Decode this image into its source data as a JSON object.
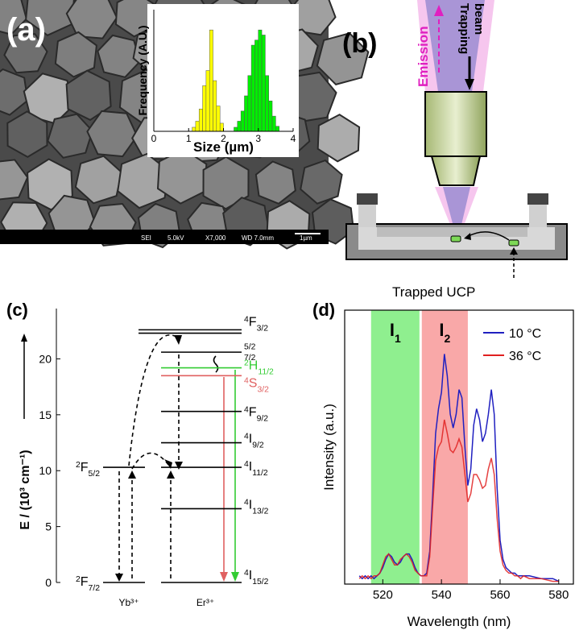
{
  "panels": {
    "a": "(a)",
    "b": "(b)",
    "c": "(c)",
    "d": "(d)"
  },
  "sem_image": {
    "info": [
      "SEI",
      "5.0kV",
      "X7,000",
      "WD 7.0mm"
    ],
    "scale_bar": "1µm"
  },
  "diagram": {
    "trapping_beam": [
      "Trapping",
      "beam"
    ],
    "emission": "Emission",
    "trapped": "Trapped UCP"
  },
  "chart_data": [
    {
      "type": "histogram",
      "xlabel": "Size (µm)",
      "ylabel": "Frequency (A.U.)",
      "xlim": [
        0,
        4
      ],
      "xticks": [
        0,
        1,
        2,
        3,
        4
      ],
      "ylim": [
        0,
        120
      ],
      "series": [
        {
          "color": "#ffff00",
          "bins": [
            1.1,
            1.2,
            1.3,
            1.4,
            1.5,
            1.6,
            1.7,
            1.8,
            1.9,
            2.0
          ],
          "values": [
            4,
            10,
            22,
            45,
            60,
            100,
            50,
            25,
            8
          ]
        },
        {
          "color": "#00ee00",
          "bins": [
            2.3,
            2.4,
            2.5,
            2.6,
            2.7,
            2.8,
            2.9,
            3.0,
            3.1,
            3.2,
            3.3,
            3.4,
            3.5,
            3.6
          ],
          "values": [
            4,
            10,
            20,
            35,
            55,
            85,
            90,
            100,
            95,
            55,
            30,
            15,
            5
          ]
        }
      ]
    },
    {
      "type": "energy-levels",
      "ylabel": "E / (10³ cm⁻¹)",
      "ylim": [
        0,
        24.5
      ],
      "yticks": [
        0,
        5,
        10,
        15,
        20
      ],
      "ions": [
        {
          "name": "Yb³⁺",
          "levels": [
            {
              "label": {
                "sup": "2",
                "main": "F",
                "sub": "5/2"
              },
              "value": 10.3
            },
            {
              "label": {
                "sup": "2",
                "main": "F",
                "sub": "7/2"
              },
              "value": 0
            }
          ]
        },
        {
          "name": "Er³⁺",
          "levels": [
            {
              "label": {
                "sup": "4",
                "main": "F",
                "sub": "3/2"
              },
              "value": 22.6
            },
            {
              "label": {
                "sub": "5/2"
              },
              "value": 22.3
            },
            {
              "label": {
                "sub": "7/2"
              },
              "value": 20.6
            },
            {
              "label": {
                "sup": "2",
                "main": "H",
                "sub": "11/2"
              },
              "value": 19.2,
              "color": "#33cc33"
            },
            {
              "label": {
                "sup": "4",
                "main": "S",
                "sub": "3/2"
              },
              "value": 18.5,
              "color": "#e06060"
            },
            {
              "label": {
                "sup": "4",
                "main": "F",
                "sub": "9/2"
              },
              "value": 15.3
            },
            {
              "label": {
                "sup": "4",
                "main": "I",
                "sub": "9/2"
              },
              "value": 12.5
            },
            {
              "label": {
                "sup": "4",
                "main": "I",
                "sub": "11/2"
              },
              "value": 10.3
            },
            {
              "label": {
                "sup": "4",
                "main": "I",
                "sub": "13/2"
              },
              "value": 6.6
            },
            {
              "label": {
                "sup": "4",
                "main": "I",
                "sub": "15/2"
              },
              "value": 0
            }
          ]
        }
      ]
    },
    {
      "type": "line",
      "xlabel": "Wavelength (nm)",
      "ylabel": "Intensity (a.u.)",
      "xlim": [
        507,
        585
      ],
      "xticks": [
        520,
        540,
        560,
        580
      ],
      "ylim": [
        0,
        1
      ],
      "legend": "upper right",
      "bands": [
        {
          "main": "I",
          "sub": "1",
          "range": [
            516,
            532.5
          ],
          "color": "#8fef8f"
        },
        {
          "main": "I",
          "sub": "2",
          "range": [
            533.3,
            549
          ],
          "color": "#f9a8a8"
        }
      ],
      "x": [
        512,
        513,
        514,
        515,
        516,
        517,
        518,
        519,
        520,
        521,
        522,
        523,
        524,
        525,
        526,
        527,
        528,
        529,
        530,
        531,
        532,
        533,
        534,
        535,
        536,
        537,
        538,
        539,
        540,
        541,
        542,
        543,
        544,
        545,
        546,
        547,
        548,
        549,
        550,
        551,
        552,
        553,
        554,
        555,
        556,
        557,
        558,
        559,
        560,
        561,
        562,
        563,
        564,
        565,
        566,
        567,
        568,
        570,
        574,
        578,
        580
      ],
      "series": [
        {
          "name": "10 °C",
          "color": "#2020c0",
          "values": [
            0.03,
            0.02,
            0.03,
            0.02,
            0.03,
            0.02,
            0.03,
            0.04,
            0.06,
            0.09,
            0.11,
            0.1,
            0.08,
            0.07,
            0.08,
            0.1,
            0.11,
            0.11,
            0.09,
            0.06,
            0.04,
            0.03,
            0.03,
            0.04,
            0.12,
            0.32,
            0.55,
            0.64,
            0.7,
            0.84,
            0.76,
            0.62,
            0.57,
            0.62,
            0.71,
            0.68,
            0.5,
            0.36,
            0.42,
            0.58,
            0.64,
            0.6,
            0.52,
            0.55,
            0.62,
            0.71,
            0.62,
            0.35,
            0.16,
            0.09,
            0.06,
            0.05,
            0.04,
            0.04,
            0.03,
            0.03,
            0.03,
            0.03,
            0.02,
            0.02,
            0.01
          ]
        },
        {
          "name": "36 °C",
          "color": "#e02020",
          "values": [
            0.02,
            0.03,
            0.02,
            0.03,
            0.02,
            0.03,
            0.03,
            0.04,
            0.07,
            0.1,
            0.11,
            0.09,
            0.07,
            0.07,
            0.09,
            0.1,
            0.11,
            0.1,
            0.08,
            0.05,
            0.04,
            0.03,
            0.03,
            0.03,
            0.1,
            0.28,
            0.45,
            0.5,
            0.52,
            0.6,
            0.55,
            0.49,
            0.48,
            0.5,
            0.53,
            0.5,
            0.4,
            0.3,
            0.33,
            0.4,
            0.4,
            0.38,
            0.35,
            0.36,
            0.42,
            0.46,
            0.4,
            0.24,
            0.12,
            0.07,
            0.05,
            0.04,
            0.04,
            0.03,
            0.03,
            0.02,
            0.03,
            0.02,
            0.02,
            0.01,
            0.01
          ]
        }
      ]
    }
  ]
}
